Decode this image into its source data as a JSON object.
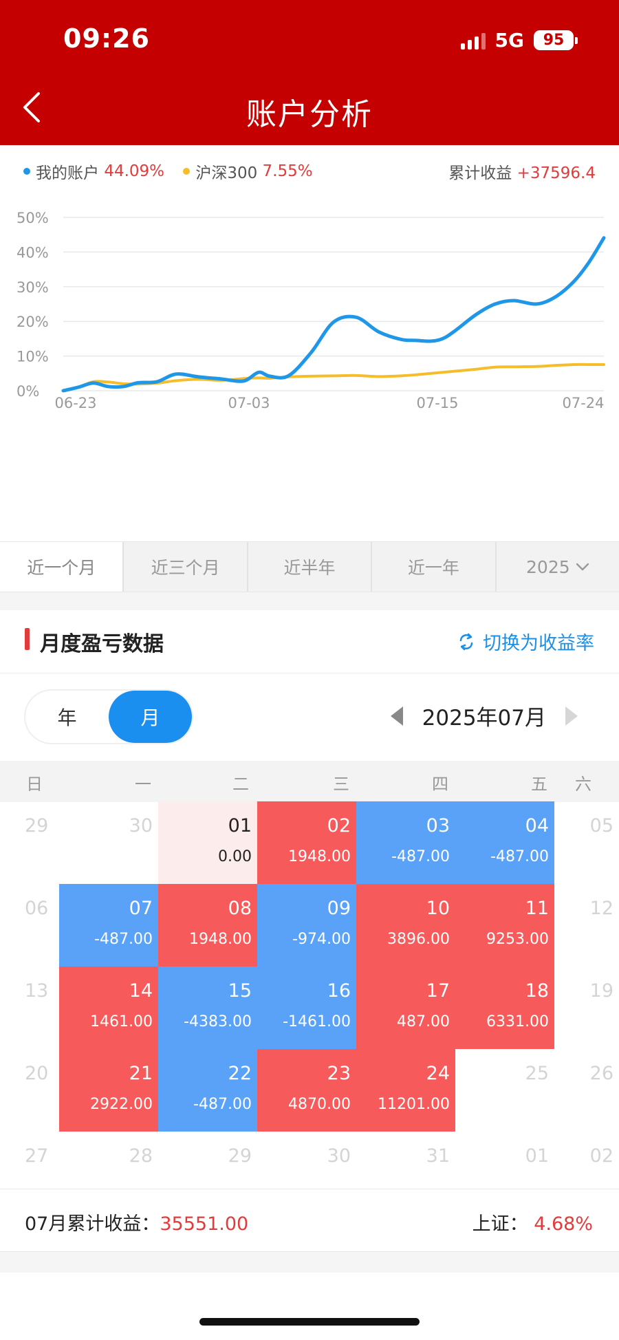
{
  "status_bar": {
    "time": "09:26",
    "network": "5G",
    "battery": "95"
  },
  "header": {
    "title": "账户分析"
  },
  "legend": {
    "my_account_label": "我的账户",
    "my_account_value": "44.09%",
    "index_label": "沪深300",
    "index_value": "7.55%",
    "cum_label": "累计收益",
    "cum_value": "+37596.4"
  },
  "colors": {
    "header_red": "#c40000",
    "series_blue": "#1f97e8",
    "series_yellow": "#f6bd2a",
    "gain_red": "#f65a5a",
    "loss_blue": "#5aa2f8",
    "accent_blue": "#1c8fe6"
  },
  "chart_data": {
    "type": "line",
    "y_ticks": [
      "50%",
      "40%",
      "30%",
      "20%",
      "10%",
      "0%"
    ],
    "x_ticks": [
      "06-23",
      "07-03",
      "07-15",
      "07-24"
    ],
    "ylim": [
      0,
      50
    ],
    "grid": true,
    "series": [
      {
        "name": "我的账户",
        "color": "#1f97e8",
        "x": [
          0,
          4,
          8,
          12,
          16,
          20,
          25,
          30,
          36,
          42,
          48,
          52,
          55,
          60,
          66,
          72,
          78,
          84,
          90,
          94,
          98,
          101,
          104,
          110,
          115,
          120,
          126,
          131,
          136,
          140,
          144,
          148,
          152,
          156,
          160,
          164,
          168,
          172,
          175
        ],
        "y": [
          0,
          1,
          2.2,
          1.2,
          1.2,
          2.3,
          2.6,
          4.8,
          4,
          3.4,
          2.8,
          5.3,
          4.2,
          4.3,
          11,
          19.8,
          21.2,
          17,
          14.8,
          14.5,
          14.3,
          15,
          17,
          22,
          25,
          26,
          25,
          27,
          31.5,
          37,
          44.09,
          44.09,
          44.09,
          44.09,
          44.09,
          44.09,
          44.09,
          44.09,
          44.09
        ]
      },
      {
        "name": "沪深300",
        "color": "#f6bd2a",
        "x": [
          0,
          4,
          8,
          12,
          16,
          20,
          25,
          30,
          36,
          42,
          48,
          52,
          55,
          60,
          66,
          72,
          78,
          84,
          90,
          94,
          98,
          101,
          104,
          110,
          115,
          120,
          126,
          131,
          136,
          140,
          144
        ],
        "y": [
          0,
          1,
          2.6,
          2.5,
          2,
          1.9,
          2.2,
          2.9,
          3.3,
          3,
          3.5,
          3.7,
          3.6,
          4,
          4.2,
          4.3,
          4.4,
          4.1,
          4.3,
          4.6,
          5,
          5.3,
          5.6,
          6.2,
          6.8,
          6.9,
          7,
          7.3,
          7.55,
          7.55,
          7.55
        ]
      }
    ]
  },
  "period_tabs": [
    "近一个月",
    "近三个月",
    "近半年",
    "近一年",
    "2025"
  ],
  "monthly": {
    "title": "月度盈亏数据",
    "switch_label": "切换为收益率",
    "toggle": {
      "year": "年",
      "month": "月"
    },
    "month_label": "2025年07月",
    "weekdays": [
      "日",
      "一",
      "二",
      "三",
      "四",
      "五",
      "六"
    ],
    "days": [
      {
        "row": 0,
        "col": 0,
        "day": "29",
        "val": "",
        "type": "empty"
      },
      {
        "row": 0,
        "col": 1,
        "day": "30",
        "val": "",
        "type": "empty"
      },
      {
        "row": 0,
        "col": 2,
        "day": "01",
        "val": "0.00",
        "type": "pink"
      },
      {
        "row": 0,
        "col": 3,
        "day": "02",
        "val": "1948.00",
        "type": "red"
      },
      {
        "row": 0,
        "col": 4,
        "day": "03",
        "val": "-487.00",
        "type": "blue"
      },
      {
        "row": 0,
        "col": 5,
        "day": "04",
        "val": "-487.00",
        "type": "blue"
      },
      {
        "row": 0,
        "col": 6,
        "day": "05",
        "val": "",
        "type": "empty"
      },
      {
        "row": 1,
        "col": 0,
        "day": "06",
        "val": "",
        "type": "empty"
      },
      {
        "row": 1,
        "col": 1,
        "day": "07",
        "val": "-487.00",
        "type": "blue"
      },
      {
        "row": 1,
        "col": 2,
        "day": "08",
        "val": "1948.00",
        "type": "red"
      },
      {
        "row": 1,
        "col": 3,
        "day": "09",
        "val": "-974.00",
        "type": "blue"
      },
      {
        "row": 1,
        "col": 4,
        "day": "10",
        "val": "3896.00",
        "type": "red"
      },
      {
        "row": 1,
        "col": 5,
        "day": "11",
        "val": "9253.00",
        "type": "red"
      },
      {
        "row": 1,
        "col": 6,
        "day": "12",
        "val": "",
        "type": "empty"
      },
      {
        "row": 2,
        "col": 0,
        "day": "13",
        "val": "",
        "type": "empty"
      },
      {
        "row": 2,
        "col": 1,
        "day": "14",
        "val": "1461.00",
        "type": "red"
      },
      {
        "row": 2,
        "col": 2,
        "day": "15",
        "val": "-4383.00",
        "type": "blue"
      },
      {
        "row": 2,
        "col": 3,
        "day": "16",
        "val": "-1461.00",
        "type": "blue"
      },
      {
        "row": 2,
        "col": 4,
        "day": "17",
        "val": "487.00",
        "type": "red"
      },
      {
        "row": 2,
        "col": 5,
        "day": "18",
        "val": "6331.00",
        "type": "red"
      },
      {
        "row": 2,
        "col": 6,
        "day": "19",
        "val": "",
        "type": "empty"
      },
      {
        "row": 3,
        "col": 0,
        "day": "20",
        "val": "",
        "type": "empty"
      },
      {
        "row": 3,
        "col": 1,
        "day": "21",
        "val": "2922.00",
        "type": "red"
      },
      {
        "row": 3,
        "col": 2,
        "day": "22",
        "val": "-487.00",
        "type": "blue"
      },
      {
        "row": 3,
        "col": 3,
        "day": "23",
        "val": "4870.00",
        "type": "red"
      },
      {
        "row": 3,
        "col": 4,
        "day": "24",
        "val": "11201.00",
        "type": "red"
      },
      {
        "row": 3,
        "col": 5,
        "day": "25",
        "val": "",
        "type": "empty"
      },
      {
        "row": 3,
        "col": 6,
        "day": "26",
        "val": "",
        "type": "empty"
      },
      {
        "row": 4,
        "col": 0,
        "day": "27",
        "val": "",
        "type": "empty"
      },
      {
        "row": 4,
        "col": 1,
        "day": "28",
        "val": "",
        "type": "empty"
      },
      {
        "row": 4,
        "col": 2,
        "day": "29",
        "val": "",
        "type": "empty"
      },
      {
        "row": 4,
        "col": 3,
        "day": "30",
        "val": "",
        "type": "empty"
      },
      {
        "row": 4,
        "col": 4,
        "day": "31",
        "val": "",
        "type": "empty"
      },
      {
        "row": 4,
        "col": 5,
        "day": "01",
        "val": "",
        "type": "empty"
      },
      {
        "row": 4,
        "col": 6,
        "day": "02",
        "val": "",
        "type": "empty"
      }
    ]
  },
  "footer": {
    "cum_label": "07月累计收益：",
    "cum_value": "35551.00",
    "index_label": "上证：",
    "index_value": "4.68%"
  }
}
